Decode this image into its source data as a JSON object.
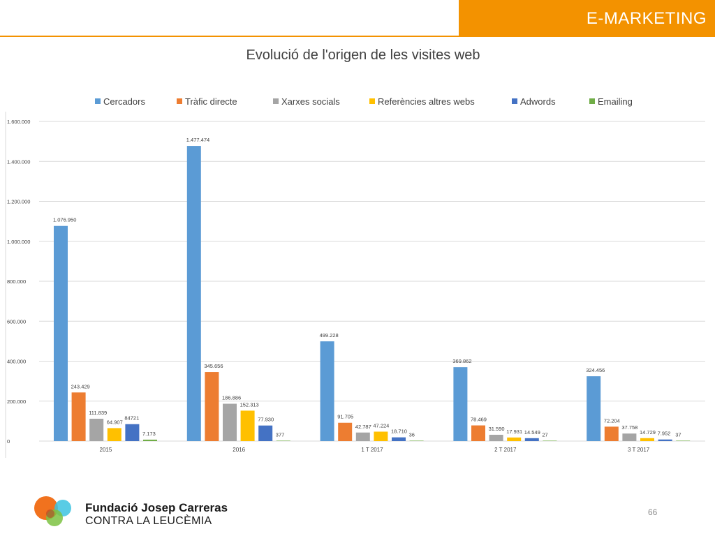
{
  "header": {
    "title": "E-MARKETING"
  },
  "footer": {
    "org_name": "Fundació Josep Carreras",
    "org_subtitle": "CONTRA LA LEUCÈMIA",
    "page_number": "66"
  },
  "colors": {
    "accent": "#f39200",
    "series": [
      "#5b9bd5",
      "#ed7d31",
      "#a5a5a5",
      "#ffc000",
      "#4472c4",
      "#70ad47"
    ]
  },
  "chart_data": {
    "type": "bar",
    "title": "Evolució de l'origen de les visites web",
    "xlabel": "",
    "ylabel": "",
    "ylim": [
      0,
      1600000
    ],
    "yticks": [
      0,
      200000,
      400000,
      600000,
      800000,
      1000000,
      1200000,
      1400000,
      1600000
    ],
    "ytick_labels": [
      "0",
      "200.000",
      "400.000",
      "600.000",
      "800.000",
      "1.000.000",
      "1.200.000",
      "1.400.000",
      "1.600.000"
    ],
    "grid": true,
    "legend_position": "top",
    "categories": [
      "2015",
      "2016",
      "1 T 2017",
      "2 T 2017",
      "3 T 2017"
    ],
    "series": [
      {
        "name": "Cercadors",
        "values": [
          1076950,
          1477474,
          499228,
          369862,
          324456
        ],
        "labels": [
          "1.076.950",
          "1.477.474",
          "499.228",
          "369.862",
          "324.456"
        ]
      },
      {
        "name": "Tràfic directe",
        "values": [
          243429,
          345656,
          91705,
          78469,
          72204
        ],
        "labels": [
          "243.429",
          "345.656",
          "91.705",
          "78.469",
          "72.204"
        ]
      },
      {
        "name": "Xarxes socials",
        "values": [
          111839,
          186886,
          42787,
          31590,
          37758
        ],
        "labels": [
          "111.839",
          "186.886",
          "42.787",
          "31.590",
          "37.758"
        ]
      },
      {
        "name": "Referències altres webs",
        "values": [
          64907,
          152313,
          47224,
          17931,
          14729
        ],
        "labels": [
          "64.907",
          "152.313",
          "47.224",
          "17.931",
          "14.729"
        ]
      },
      {
        "name": "Adwords",
        "values": [
          84721,
          77930,
          18710,
          14549,
          7952
        ],
        "labels": [
          "84721",
          "77.930",
          "18.710",
          "14.549",
          "7.952"
        ]
      },
      {
        "name": "Emailing",
        "values": [
          7173,
          377,
          36,
          27,
          37
        ],
        "labels": [
          "7.173",
          "377",
          "36",
          "27",
          "37"
        ]
      }
    ]
  }
}
